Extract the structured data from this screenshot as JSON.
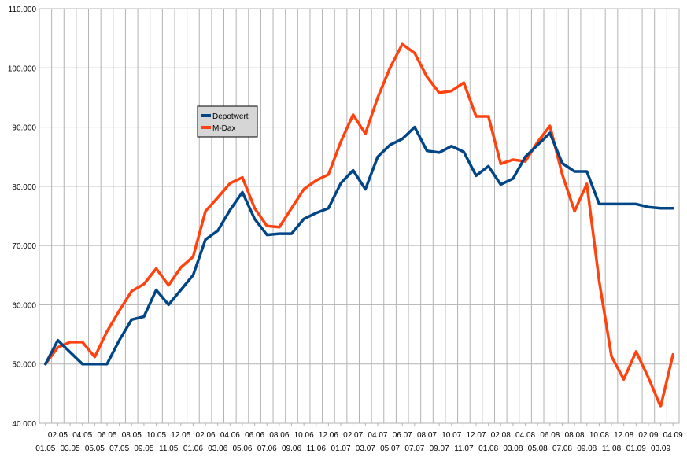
{
  "chart_data": {
    "type": "line",
    "title": "",
    "xlabel": "",
    "ylabel": "",
    "ylim": [
      40000,
      110000
    ],
    "yticks": [
      "40.000",
      "50.000",
      "60.000",
      "70.000",
      "80.000",
      "90.000",
      "100.000",
      "110.000"
    ],
    "ytick_values": [
      40000,
      50000,
      60000,
      70000,
      80000,
      90000,
      100000,
      110000
    ],
    "grid": true,
    "legend_position": "top-left-inset",
    "categories": [
      "01.05",
      "02.05",
      "03.05",
      "04.05",
      "05.05",
      "06.05",
      "07.05",
      "08.05",
      "09.05",
      "10.05",
      "11.05",
      "12.05",
      "01.06",
      "02.06",
      "03.06",
      "04.06",
      "05.06",
      "06.06",
      "07.06",
      "08.06",
      "09.06",
      "10.06",
      "11.06",
      "12.06",
      "01.07",
      "02.07",
      "03.07",
      "04.07",
      "05.07",
      "06.07",
      "07.07",
      "08.07",
      "09.07",
      "10.07",
      "11.07",
      "12.07",
      "01.08",
      "02.08",
      "03.08",
      "04.08",
      "05.08",
      "06.08",
      "07.08",
      "08.08",
      "09.08",
      "10.08",
      "11.08",
      "12.08",
      "01.09",
      "02.09",
      "03.09",
      "04.09"
    ],
    "series": [
      {
        "name": "Depotwert",
        "color": "#004586",
        "values": [
          50000,
          54000,
          52000,
          50000,
          50000,
          50000,
          54000,
          57500,
          58000,
          62500,
          60000,
          62500,
          65000,
          71000,
          72500,
          76000,
          79000,
          74500,
          71800,
          72000,
          72000,
          74500,
          75500,
          76300,
          80500,
          82700,
          79500,
          85000,
          87000,
          88000,
          90000,
          86000,
          85700,
          86800,
          85800,
          81800,
          83400,
          80300,
          81300,
          85000,
          87000,
          89000,
          83900,
          82500,
          82500,
          77000,
          77000,
          77000,
          77000,
          76500,
          76300,
          76300
        ]
      },
      {
        "name": "M-Dax",
        "color": "#ff420e",
        "values": [
          50000,
          52800,
          53700,
          53700,
          51200,
          55500,
          59000,
          62300,
          63500,
          66100,
          63300,
          66300,
          68100,
          75800,
          78100,
          80500,
          81500,
          76300,
          73300,
          73100,
          76300,
          79500,
          81000,
          82000,
          87500,
          92100,
          88900,
          95000,
          100000,
          104000,
          102500,
          98500,
          95800,
          96100,
          97500,
          91800,
          91800,
          83800,
          84500,
          84200,
          87500,
          90200,
          82000,
          75800,
          80400,
          64000,
          51300,
          47400,
          52100,
          47700,
          42800,
          51600
        ]
      }
    ]
  }
}
